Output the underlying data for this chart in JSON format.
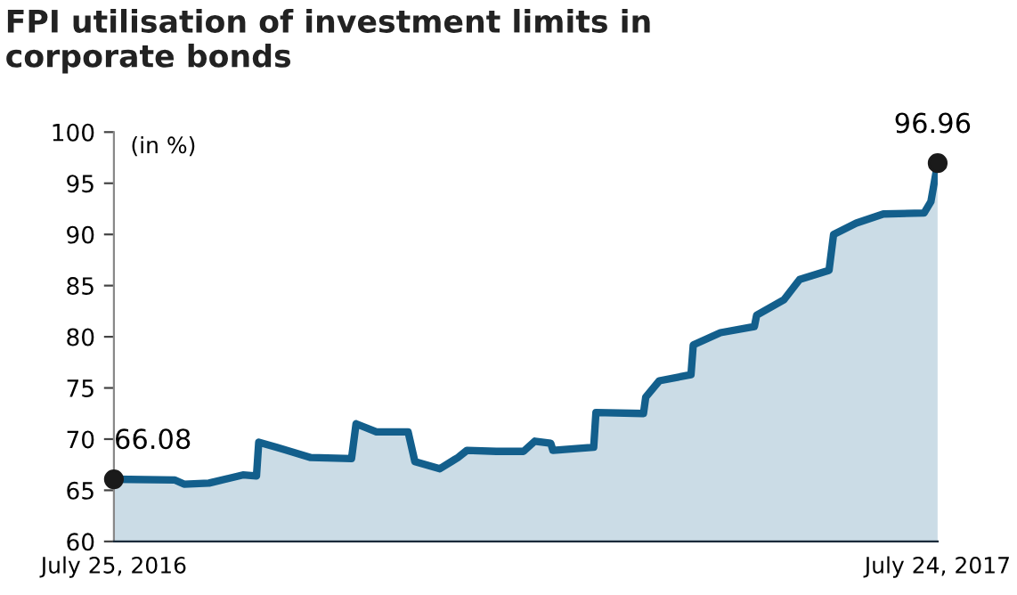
{
  "chart_data": {
    "type": "area",
    "title": "FPI utilisation of investment limits in\ncorporate bonds",
    "ylabel": "(in %)",
    "x": [
      "2016-07-25",
      "2016-08-21",
      "2016-08-25",
      "2016-09-05",
      "2016-09-20",
      "2016-09-26",
      "2016-09-27",
      "2016-10-05",
      "2016-10-20",
      "2016-11-07",
      "2016-11-09",
      "2016-11-18",
      "2016-12-02",
      "2016-12-05",
      "2016-12-16",
      "2016-12-24",
      "2016-12-28",
      "2017-01-10",
      "2017-01-22",
      "2017-01-27",
      "2017-02-03",
      "2017-02-04",
      "2017-02-22",
      "2017-02-23",
      "2017-03-16",
      "2017-03-17",
      "2017-03-23",
      "2017-04-06",
      "2017-04-07",
      "2017-04-19",
      "2017-05-04",
      "2017-05-05",
      "2017-05-17",
      "2017-05-24",
      "2017-06-06",
      "2017-06-08",
      "2017-06-18",
      "2017-06-30",
      "2017-07-18",
      "2017-07-21",
      "2017-07-24"
    ],
    "series": [
      {
        "color": "#135f8c",
        "values": [
          66.08,
          66.0,
          65.6,
          65.7,
          66.5,
          66.4,
          69.7,
          69.2,
          68.2,
          68.1,
          71.5,
          70.7,
          70.7,
          67.8,
          67.1,
          68.2,
          68.9,
          68.8,
          68.8,
          69.8,
          69.6,
          68.9,
          69.2,
          72.6,
          72.5,
          74.1,
          75.7,
          76.3,
          79.2,
          80.4,
          81.0,
          82.1,
          83.6,
          85.6,
          86.5,
          90.0,
          91.1,
          92.0,
          92.1,
          93.2,
          96.96
        ]
      }
    ],
    "annotations": [
      {
        "text": "66.08",
        "x": "2016-07-25",
        "y": 66.08
      },
      {
        "text": "96.96",
        "x": "2017-07-24",
        "y": 96.96
      }
    ],
    "xlim": [
      "2016-07-25",
      "2017-07-24"
    ],
    "xticks": [
      {
        "value": "2016-07-25",
        "label": "July 25, 2016"
      },
      {
        "value": "2017-07-24",
        "label": "July 24, 2017"
      }
    ],
    "ylim": [
      60,
      100
    ],
    "yticks": [
      60,
      65,
      70,
      75,
      80,
      85,
      90,
      95,
      100
    ],
    "grid": false
  }
}
